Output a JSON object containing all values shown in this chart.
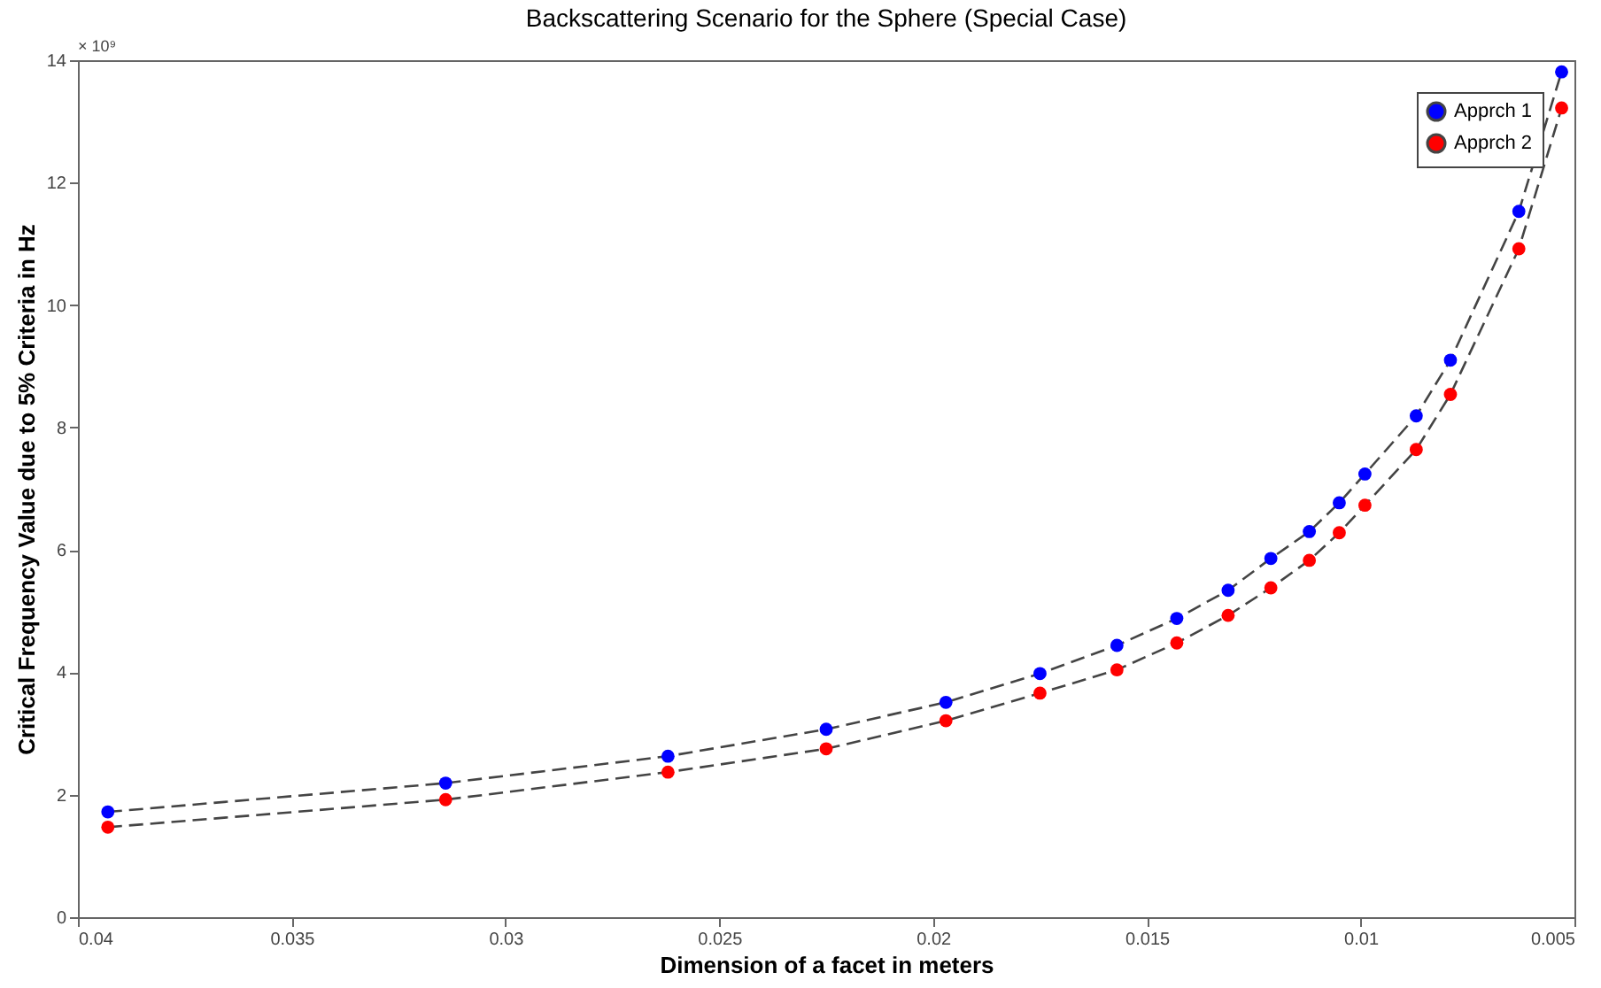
{
  "chart_data": {
    "type": "line",
    "title": "Backscattering Scenario for the Sphere (Special Case)",
    "xlabel": "Dimension of a facet in meters",
    "ylabel": "Critical Frequency Value due to 5% Criteria in Hz",
    "x": [
      0.0393,
      0.0314,
      0.0262,
      0.0225,
      0.0197,
      0.0175,
      0.0157,
      0.0143,
      0.0131,
      0.0121,
      0.0112,
      0.0105,
      0.0099,
      0.0087,
      0.0079,
      0.0063,
      0.0053
    ],
    "series": [
      {
        "name": "Apprch 1",
        "color": "#0000ff",
        "values": [
          1.72,
          2.19,
          2.63,
          3.07,
          3.51,
          3.98,
          4.44,
          4.88,
          5.34,
          5.86,
          6.3,
          6.77,
          7.24,
          8.19,
          9.1,
          11.53,
          13.81
        ]
      },
      {
        "name": "Apprch 2",
        "color": "#ff0000",
        "values": [
          1.47,
          1.92,
          2.37,
          2.75,
          3.21,
          3.66,
          4.04,
          4.48,
          4.93,
          5.38,
          5.83,
          6.28,
          6.73,
          7.64,
          8.54,
          10.92,
          13.22
        ]
      }
    ],
    "xlim": [
      0.04,
      0.005
    ],
    "xticks": [
      0.04,
      0.035,
      0.03,
      0.025,
      0.02,
      0.015,
      0.01,
      0.005
    ],
    "ylim": [
      0,
      14
    ],
    "yticks": [
      0,
      2,
      4,
      6,
      8,
      10,
      12,
      14
    ],
    "annotations": [
      "× 10⁹"
    ],
    "grid": false,
    "legend": "top right",
    "marker": "circle",
    "line_style": "dashed"
  }
}
